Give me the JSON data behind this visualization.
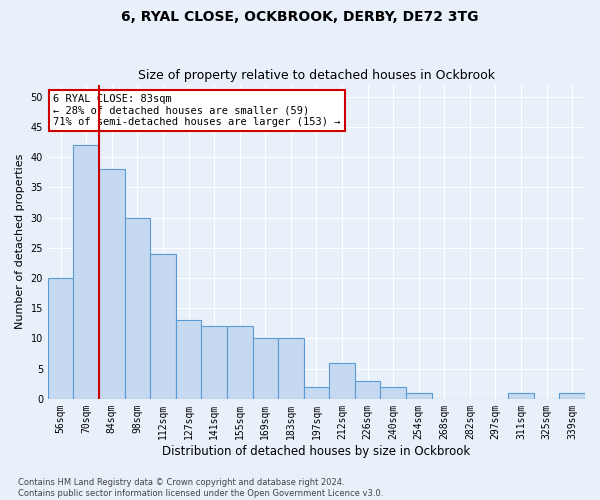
{
  "title": "6, RYAL CLOSE, OCKBROOK, DERBY, DE72 3TG",
  "subtitle": "Size of property relative to detached houses in Ockbrook",
  "xlabel": "Distribution of detached houses by size in Ockbrook",
  "ylabel": "Number of detached properties",
  "categories": [
    "56sqm",
    "70sqm",
    "84sqm",
    "98sqm",
    "112sqm",
    "127sqm",
    "141sqm",
    "155sqm",
    "169sqm",
    "183sqm",
    "197sqm",
    "212sqm",
    "226sqm",
    "240sqm",
    "254sqm",
    "268sqm",
    "282sqm",
    "297sqm",
    "311sqm",
    "325sqm",
    "339sqm"
  ],
  "values": [
    20,
    42,
    38,
    30,
    24,
    13,
    12,
    12,
    10,
    10,
    2,
    6,
    3,
    2,
    1,
    0,
    0,
    0,
    1,
    0,
    1
  ],
  "bar_color": "#c5d9f0",
  "bar_edge_color": "#5b9bd5",
  "vline_x_index": 1.5,
  "vline_color": "#cc0000",
  "annotation_text": "6 RYAL CLOSE: 83sqm\n← 28% of detached houses are smaller (59)\n71% of semi-detached houses are larger (153) →",
  "annotation_box_color": "#ffffff",
  "annotation_box_edge": "#cc0000",
  "ylim": [
    0,
    52
  ],
  "yticks": [
    0,
    5,
    10,
    15,
    20,
    25,
    30,
    35,
    40,
    45,
    50
  ],
  "footnote": "Contains HM Land Registry data © Crown copyright and database right 2024.\nContains public sector information licensed under the Open Government Licence v3.0.",
  "background_color": "#e8f0fa",
  "grid_color": "#ffffff",
  "title_fontsize": 10,
  "subtitle_fontsize": 9,
  "tick_fontsize": 7,
  "ylabel_fontsize": 8,
  "xlabel_fontsize": 8.5,
  "footnote_fontsize": 6
}
